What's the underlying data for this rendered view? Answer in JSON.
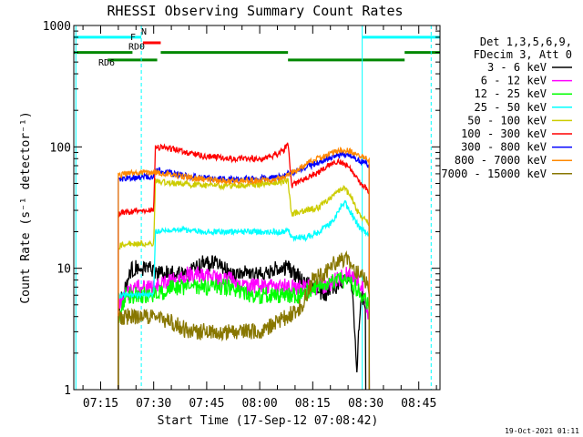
{
  "chart_data": {
    "type": "line",
    "title": "RHESSI Observing Summary Count Rates",
    "xlabel": "Start Time (17-Sep-12 07:08:42)",
    "ylabel": "Count Rate (s⁻¹ detector⁻¹)",
    "y_scale": "log",
    "ylim": [
      1,
      1000
    ],
    "xlim_minutes": [
      67.4,
      171.0
    ],
    "x_ticks": [
      {
        "label": "07:15",
        "minute": 75
      },
      {
        "label": "07:30",
        "minute": 90
      },
      {
        "label": "07:45",
        "minute": 105
      },
      {
        "label": "08:00",
        "minute": 120
      },
      {
        "label": "08:15",
        "minute": 135
      },
      {
        "label": "08:30",
        "minute": 150
      },
      {
        "label": "08:45",
        "minute": 165
      }
    ],
    "y_ticks": [
      {
        "label": "1",
        "value": 1
      },
      {
        "label": "10",
        "value": 10
      },
      {
        "label": "100",
        "value": 100
      },
      {
        "label": "1000",
        "value": 1000
      }
    ],
    "legend_header": [
      "Det 1,3,5,6,9,",
      "FDecim 3, Att 0"
    ],
    "legend_position": "right",
    "timestamp": "19-Oct-2021 01:11",
    "series": [
      {
        "name": "3 - 6 keV",
        "color": "#000000",
        "points": [
          [
            80,
            5
          ],
          [
            82,
            7
          ],
          [
            84,
            10
          ],
          [
            88,
            10
          ],
          [
            92,
            9
          ],
          [
            100,
            9
          ],
          [
            104,
            11
          ],
          [
            108,
            11
          ],
          [
            112,
            9
          ],
          [
            116,
            9
          ],
          [
            120,
            9
          ],
          [
            124,
            10
          ],
          [
            128,
            10
          ],
          [
            132,
            8
          ],
          [
            135,
            7
          ],
          [
            138,
            6
          ],
          [
            142,
            7
          ],
          [
            145,
            8
          ],
          [
            146,
            7
          ],
          [
            147,
            3
          ],
          [
            147.5,
            1.2
          ],
          [
            148,
            3
          ],
          [
            149,
            6
          ],
          [
            150,
            5
          ]
        ]
      },
      {
        "name": "6 - 12 keV",
        "color": "#ff00ff",
        "points": [
          [
            80,
            5
          ],
          [
            82,
            6
          ],
          [
            86,
            7
          ],
          [
            90,
            7
          ],
          [
            96,
            8
          ],
          [
            100,
            9
          ],
          [
            104,
            9
          ],
          [
            108,
            8
          ],
          [
            112,
            8
          ],
          [
            116,
            7
          ],
          [
            120,
            7
          ],
          [
            124,
            7
          ],
          [
            128,
            7
          ],
          [
            132,
            7
          ],
          [
            135,
            7
          ],
          [
            138,
            7
          ],
          [
            142,
            8
          ],
          [
            145,
            9
          ],
          [
            147,
            8
          ],
          [
            149,
            7
          ],
          [
            151,
            4
          ]
        ]
      },
      {
        "name": "12 - 25 keV",
        "color": "#00ff00",
        "points": [
          [
            80,
            4
          ],
          [
            82,
            6
          ],
          [
            86,
            6
          ],
          [
            90,
            6
          ],
          [
            96,
            7
          ],
          [
            100,
            7
          ],
          [
            104,
            7
          ],
          [
            108,
            7
          ],
          [
            112,
            7
          ],
          [
            116,
            6
          ],
          [
            120,
            6
          ],
          [
            124,
            6
          ],
          [
            128,
            6
          ],
          [
            132,
            6
          ],
          [
            135,
            7
          ],
          [
            138,
            7
          ],
          [
            142,
            8
          ],
          [
            145,
            8
          ],
          [
            147,
            7
          ],
          [
            149,
            6
          ],
          [
            151,
            5
          ]
        ]
      },
      {
        "name": "25 - 50 keV",
        "color": "#00ffff",
        "points": [
          [
            80,
            6
          ],
          [
            82,
            6
          ],
          [
            88,
            6
          ],
          [
            90,
            6
          ],
          [
            90.5,
            20
          ],
          [
            96,
            21
          ],
          [
            104,
            20
          ],
          [
            112,
            20
          ],
          [
            120,
            20
          ],
          [
            127,
            20
          ],
          [
            128,
            21
          ],
          [
            129,
            18
          ],
          [
            133,
            18
          ],
          [
            137,
            20
          ],
          [
            141,
            25
          ],
          [
            143,
            33
          ],
          [
            144,
            35
          ],
          [
            146,
            28
          ],
          [
            148,
            22
          ],
          [
            150,
            20
          ],
          [
            151,
            18
          ]
        ]
      },
      {
        "name": "50 - 100 keV",
        "color": "#cccc00",
        "points": [
          [
            80,
            15
          ],
          [
            82,
            16
          ],
          [
            90,
            16
          ],
          [
            90.5,
            52
          ],
          [
            96,
            50
          ],
          [
            104,
            48
          ],
          [
            112,
            48
          ],
          [
            120,
            49
          ],
          [
            127,
            52
          ],
          [
            128,
            53
          ],
          [
            129,
            28
          ],
          [
            133,
            30
          ],
          [
            137,
            32
          ],
          [
            140,
            38
          ],
          [
            143,
            45
          ],
          [
            144,
            46
          ],
          [
            146,
            38
          ],
          [
            148,
            28
          ],
          [
            150,
            25
          ],
          [
            151,
            23
          ]
        ]
      },
      {
        "name": "100 - 300 keV",
        "color": "#ff0000",
        "points": [
          [
            80,
            28
          ],
          [
            82,
            29
          ],
          [
            90,
            30
          ],
          [
            90.5,
            100
          ],
          [
            96,
            95
          ],
          [
            104,
            84
          ],
          [
            112,
            80
          ],
          [
            120,
            80
          ],
          [
            124,
            84
          ],
          [
            127,
            95
          ],
          [
            128,
            110
          ],
          [
            129,
            48
          ],
          [
            133,
            55
          ],
          [
            137,
            62
          ],
          [
            140,
            72
          ],
          [
            143,
            76
          ],
          [
            146,
            65
          ],
          [
            148,
            52
          ],
          [
            150,
            46
          ],
          [
            151,
            42
          ]
        ]
      },
      {
        "name": "300 - 800 keV",
        "color": "#0000ff",
        "points": [
          [
            80,
            54
          ],
          [
            82,
            55
          ],
          [
            90,
            57
          ],
          [
            90.5,
            65
          ],
          [
            96,
            60
          ],
          [
            104,
            55
          ],
          [
            112,
            54
          ],
          [
            120,
            55
          ],
          [
            127,
            57
          ],
          [
            128,
            60
          ],
          [
            129,
            60
          ],
          [
            133,
            68
          ],
          [
            137,
            75
          ],
          [
            140,
            82
          ],
          [
            143,
            87
          ],
          [
            146,
            85
          ],
          [
            148,
            78
          ],
          [
            150,
            74
          ],
          [
            151,
            70
          ]
        ]
      },
      {
        "name": "800 - 7000 keV",
        "color": "#ff8800",
        "points": [
          [
            80,
            58
          ],
          [
            82,
            60
          ],
          [
            90,
            62
          ],
          [
            90.5,
            62
          ],
          [
            96,
            58
          ],
          [
            104,
            54
          ],
          [
            112,
            52
          ],
          [
            120,
            53
          ],
          [
            127,
            55
          ],
          [
            128,
            58
          ],
          [
            129,
            60
          ],
          [
            133,
            72
          ],
          [
            137,
            82
          ],
          [
            140,
            90
          ],
          [
            143,
            94
          ],
          [
            146,
            92
          ],
          [
            148,
            86
          ],
          [
            150,
            82
          ],
          [
            151,
            78
          ]
        ]
      },
      {
        "name": "7000 - 15000 keV",
        "color": "#887700",
        "points": [
          [
            80,
            4
          ],
          [
            82,
            4
          ],
          [
            86,
            4
          ],
          [
            90,
            4
          ],
          [
            96,
            3.5
          ],
          [
            100,
            3
          ],
          [
            104,
            3
          ],
          [
            108,
            3
          ],
          [
            112,
            3
          ],
          [
            116,
            3
          ],
          [
            120,
            3
          ],
          [
            124,
            3.5
          ],
          [
            128,
            4
          ],
          [
            132,
            5
          ],
          [
            135,
            8
          ],
          [
            138,
            9
          ],
          [
            141,
            11
          ],
          [
            143,
            12
          ],
          [
            146,
            11
          ],
          [
            148,
            9
          ],
          [
            150,
            8
          ],
          [
            151,
            7
          ]
        ]
      }
    ],
    "vertical_lines": [
      {
        "minute": 68,
        "color": "#00ffff",
        "style": "solid"
      },
      {
        "minute": 86.5,
        "color": "#00ffff",
        "style": "dashed"
      },
      {
        "minute": 149,
        "color": "#00ffff",
        "style": "solid"
      },
      {
        "minute": 168.5,
        "color": "#00ffff",
        "style": "dashed"
      }
    ],
    "flag_bars": [
      {
        "label": "N",
        "color": "#00ffff",
        "value": 800,
        "segments": [
          [
            67.4,
            86.5
          ],
          [
            149,
            171
          ]
        ]
      },
      {
        "label": "F",
        "color": "#ff0000",
        "value": 720,
        "segments": [
          [
            87,
            92
          ]
        ]
      },
      {
        "label": "RD0",
        "color": "#008800",
        "value": 600,
        "segments": [
          [
            67.4,
            84
          ],
          [
            92,
            128
          ],
          [
            161,
            171
          ]
        ]
      },
      {
        "label": "RD6",
        "color": "#008800",
        "value": 520,
        "segments": [
          [
            77,
            91
          ],
          [
            128,
            161
          ]
        ]
      }
    ]
  }
}
